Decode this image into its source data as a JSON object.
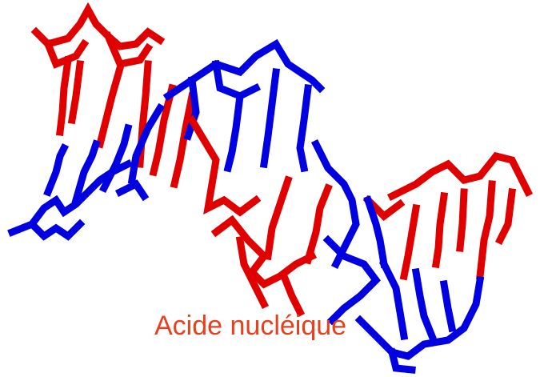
{
  "caption": "Acide nucléique"
}
